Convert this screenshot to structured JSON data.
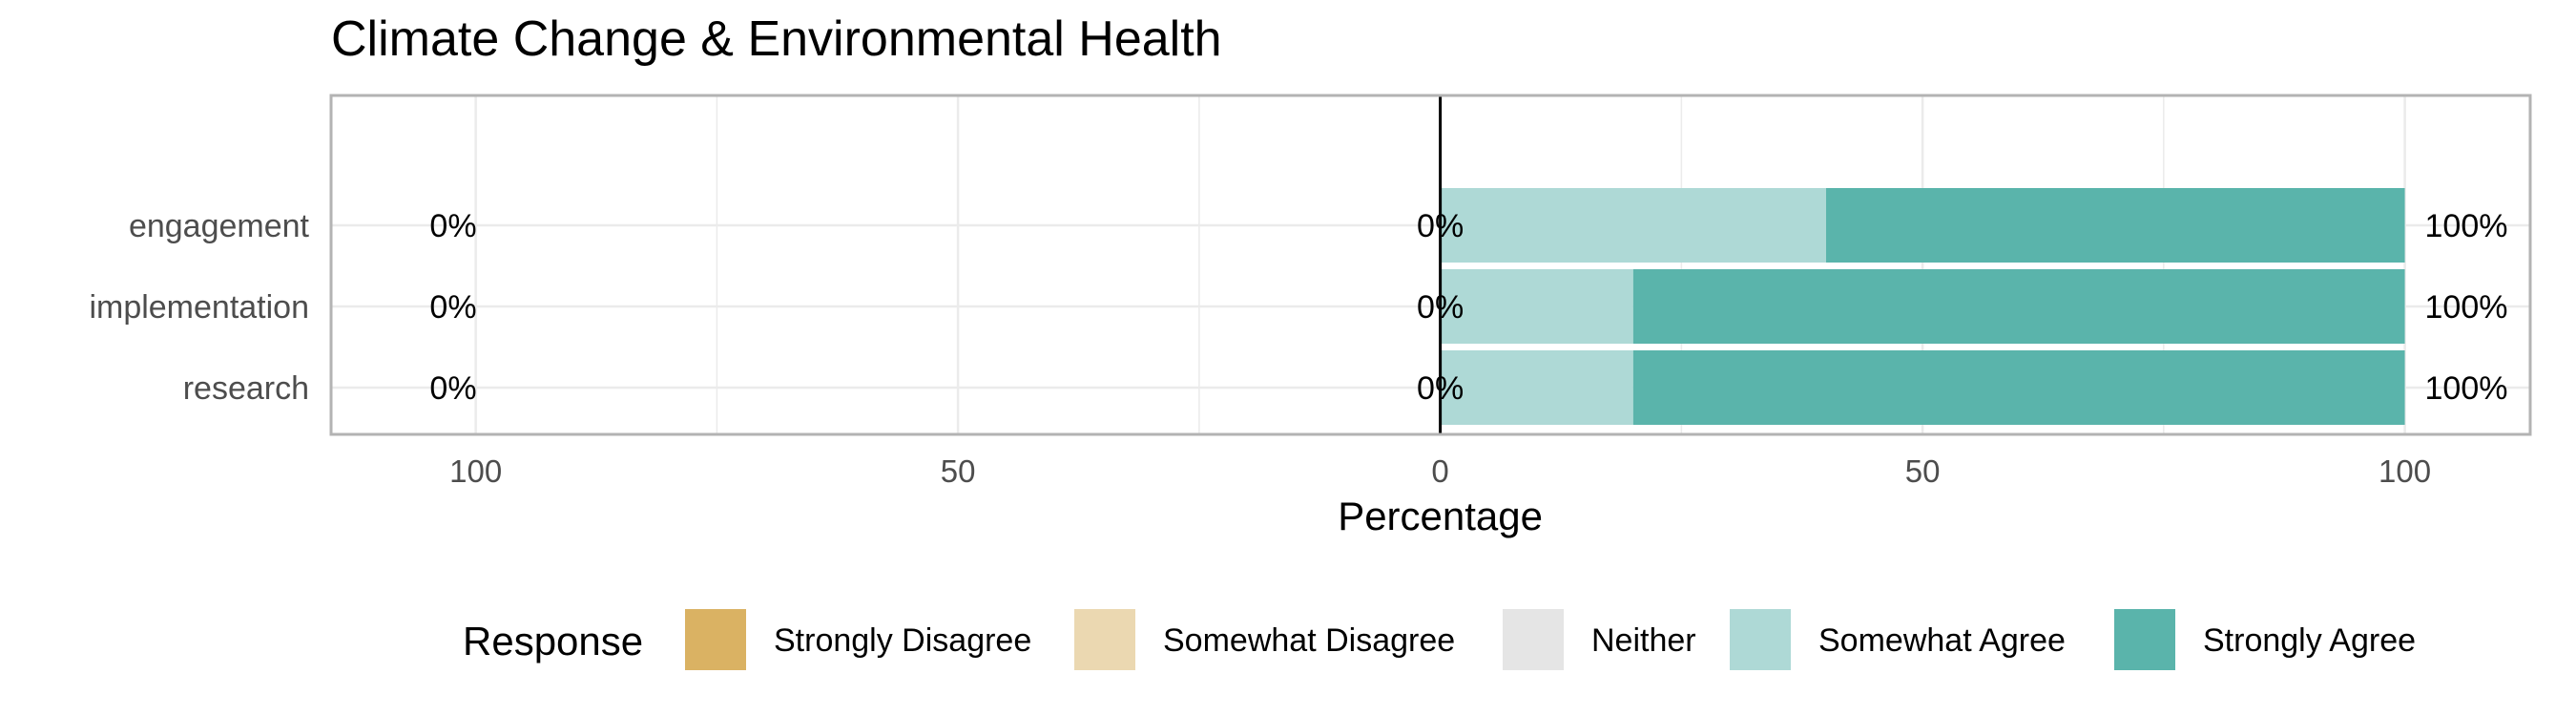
{
  "chart_data": {
    "type": "bar",
    "orientation": "horizontal",
    "stacked": "diverging",
    "title": "Climate Change & Environmental Health",
    "xlabel": "Percentage",
    "ylabel": "",
    "xlim": [
      -115,
      113
    ],
    "x_ticks": [
      -100,
      -50,
      0,
      50,
      100
    ],
    "x_tick_labels": [
      "100",
      "50",
      "0",
      "50",
      "100"
    ],
    "categories": [
      "engagement",
      "implementation",
      "research"
    ],
    "series": [
      {
        "name": "Strongly Disagree",
        "values": [
          0,
          0,
          0
        ]
      },
      {
        "name": "Somewhat Disagree",
        "values": [
          0,
          0,
          0
        ]
      },
      {
        "name": "Neither",
        "values": [
          0,
          0,
          0
        ]
      },
      {
        "name": "Somewhat Agree",
        "values": [
          40,
          20,
          20
        ]
      },
      {
        "name": "Strongly Agree",
        "values": [
          60,
          80,
          80
        ]
      }
    ],
    "labels": {
      "left": [
        "0%",
        "0%",
        "0%"
      ],
      "center": [
        "0%",
        "0%",
        "0%"
      ],
      "right": [
        "100%",
        "100%",
        "100%"
      ]
    },
    "legend": {
      "title": "Response",
      "position": "bottom",
      "items": [
        "Strongly Disagree",
        "Somewhat Disagree",
        "Neither",
        "Somewhat Agree",
        "Strongly Agree"
      ]
    },
    "colors": {
      "Strongly Disagree": "#dab263",
      "Somewhat Disagree": "#ebd8b1",
      "Neither": "#e5e5e5",
      "Somewhat Agree": "#aed9d6",
      "Strongly Agree": "#5ab4ab"
    },
    "grid": true,
    "panel_border_color": "#b3b3b3",
    "grid_color": "#ebebeb",
    "zero_line_color": "#000000"
  }
}
